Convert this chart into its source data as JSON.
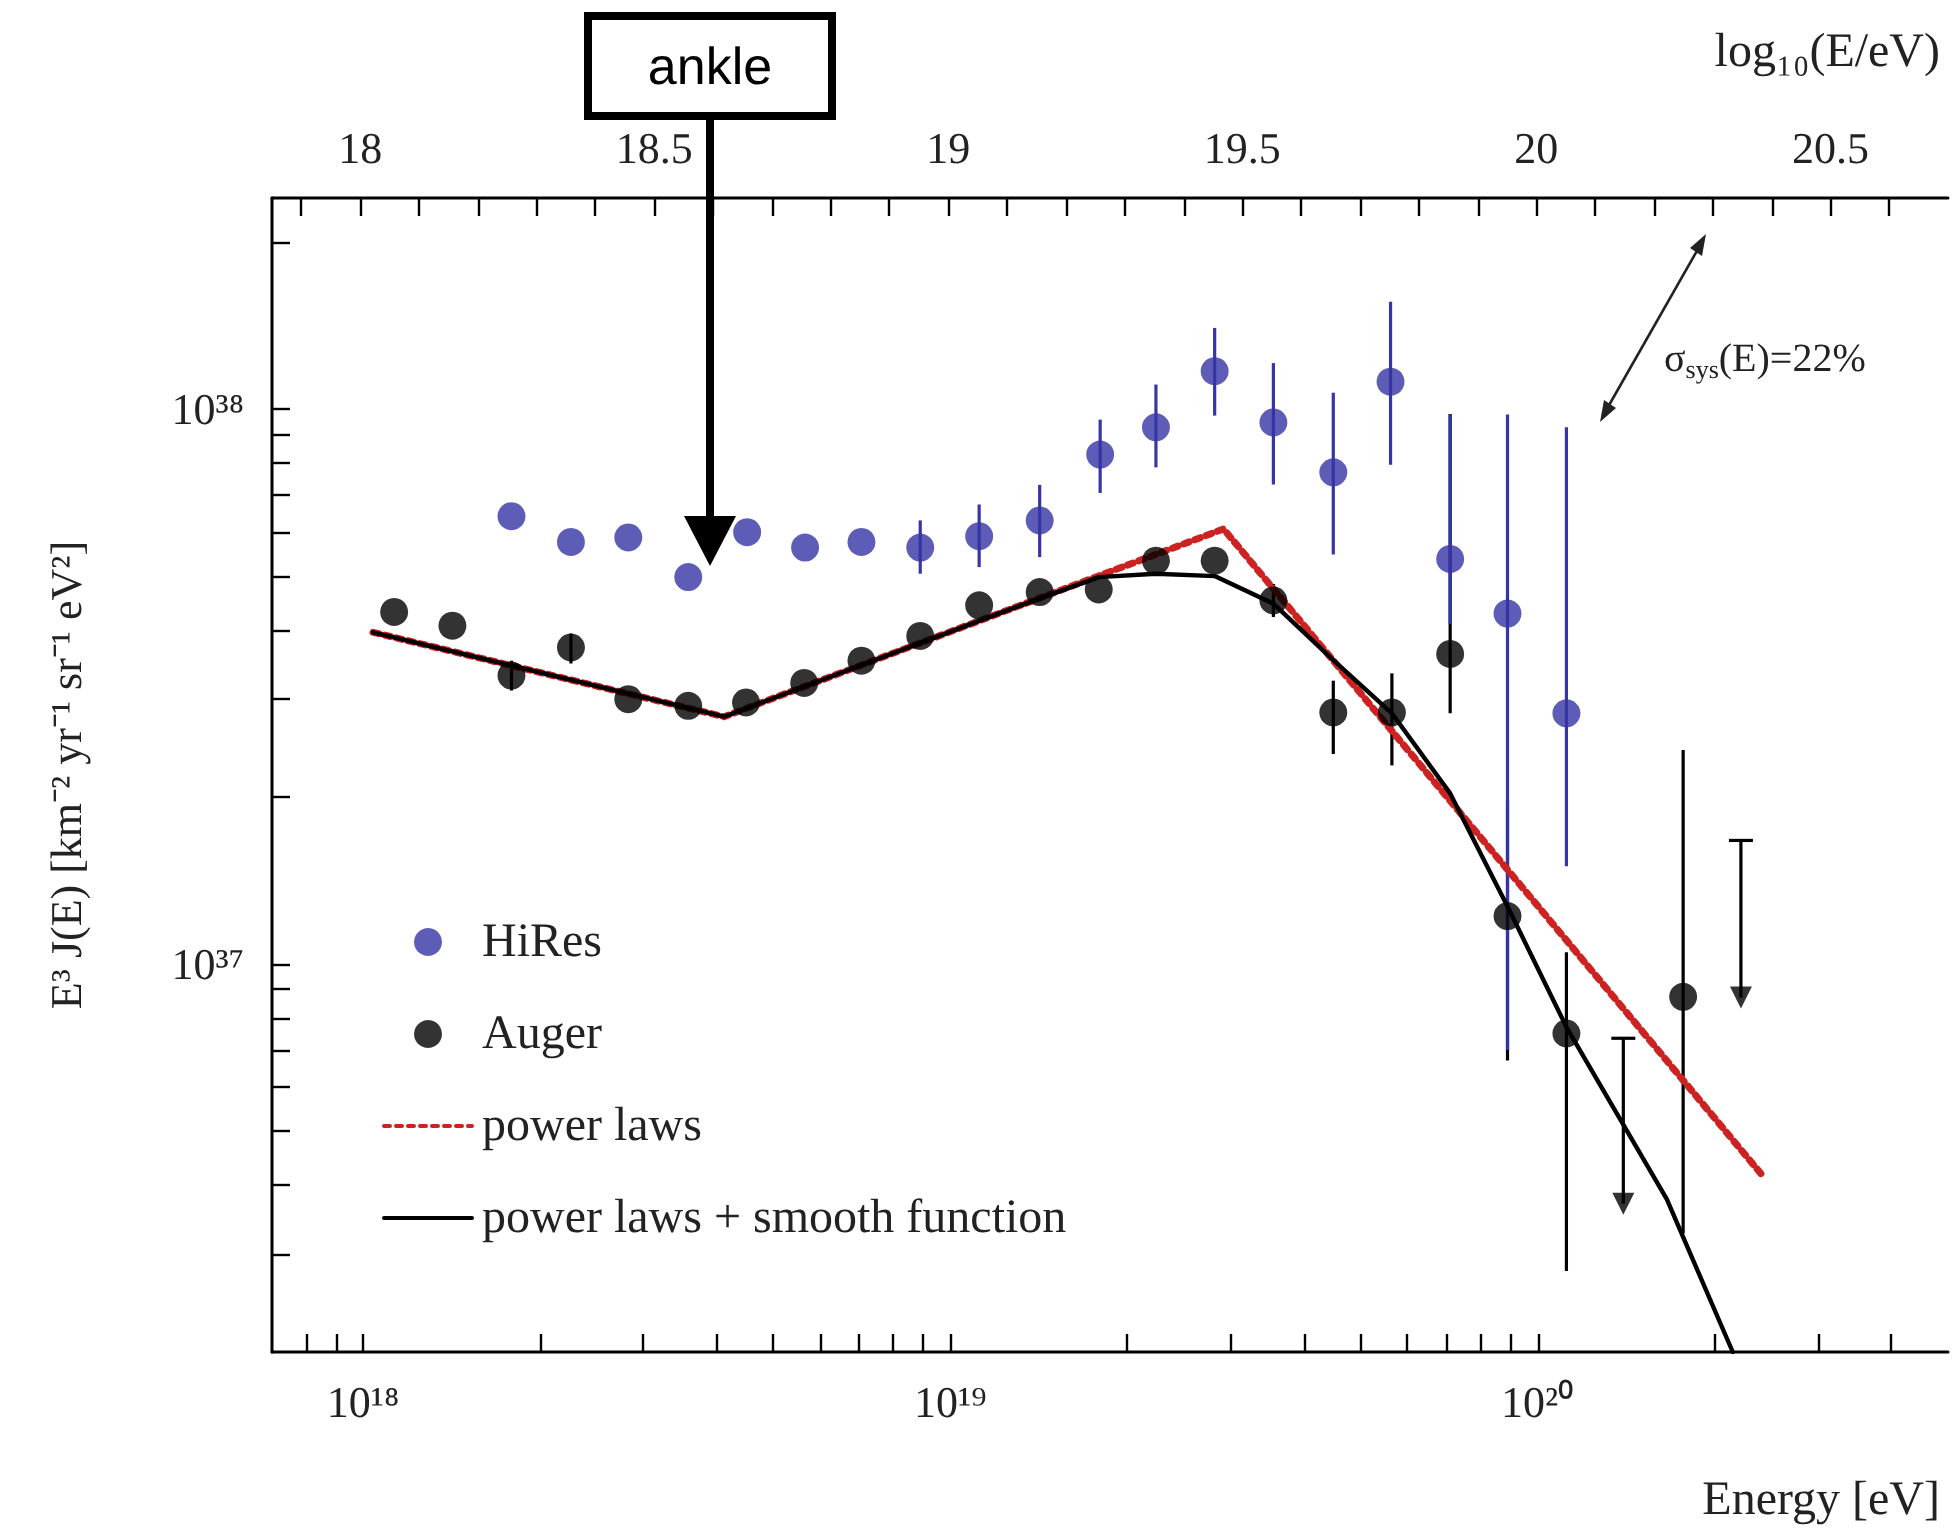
{
  "chart_data": {
    "type": "scatter",
    "xlabel": "Energy [eV]",
    "ylabel": "E³ J(E) [km⁻² yr⁻¹ sr⁻¹ eV²]",
    "x2label": "log₁₀(E/eV)",
    "xlim": [
      7e+17,
      5e+20
    ],
    "ylim": [
      2e+36,
      2.4e+38
    ],
    "x2lim": [
      17.85,
      20.7
    ],
    "log": "xy",
    "legend": "bottom left",
    "xticks": [
      {
        "value": 8e+17,
        "label": null
      },
      {
        "value": 9e+17,
        "label": null
      },
      {
        "value": 1e+18,
        "label": "10¹⁸"
      },
      {
        "value": 2e+18,
        "label": null
      },
      {
        "value": 3e+18,
        "label": null
      },
      {
        "value": 4e+18,
        "label": null
      },
      {
        "value": 5e+18,
        "label": null
      },
      {
        "value": 6e+18,
        "label": null
      },
      {
        "value": 7e+18,
        "label": null
      },
      {
        "value": 8e+18,
        "label": null
      },
      {
        "value": 9e+18,
        "label": null
      },
      {
        "value": 1e+19,
        "label": "10¹⁹"
      },
      {
        "value": 2e+19,
        "label": null
      },
      {
        "value": 3e+19,
        "label": null
      },
      {
        "value": 4e+19,
        "label": null
      },
      {
        "value": 5e+19,
        "label": null
      },
      {
        "value": 6e+19,
        "label": null
      },
      {
        "value": 7e+19,
        "label": null
      },
      {
        "value": 8e+19,
        "label": null
      },
      {
        "value": 9e+19,
        "label": null
      },
      {
        "value": 1e+20,
        "label": "10²⁰"
      },
      {
        "value": 2e+20,
        "label": null
      },
      {
        "value": 3e+20,
        "label": null
      },
      {
        "value": 4e+20,
        "label": null
      }
    ],
    "yticks": [
      {
        "value": 3e+36,
        "label": null
      },
      {
        "value": 4e+36,
        "label": null
      },
      {
        "value": 5e+36,
        "label": null
      },
      {
        "value": 6e+36,
        "label": null
      },
      {
        "value": 7e+36,
        "label": null
      },
      {
        "value": 8e+36,
        "label": null
      },
      {
        "value": 9e+36,
        "label": null
      },
      {
        "value": 1e+37,
        "label": "10³⁷"
      },
      {
        "value": 2e+37,
        "label": null
      },
      {
        "value": 3e+37,
        "label": null
      },
      {
        "value": 4e+37,
        "label": null
      },
      {
        "value": 5e+37,
        "label": null
      },
      {
        "value": 6e+37,
        "label": null
      },
      {
        "value": 7e+37,
        "label": null
      },
      {
        "value": 8e+37,
        "label": null
      },
      {
        "value": 9e+37,
        "label": null
      },
      {
        "value": 1e+38,
        "label": "10³⁸"
      },
      {
        "value": 2e+38,
        "label": null
      }
    ],
    "x2ticks": [
      {
        "value": 17.9,
        "label": null
      },
      18,
      {
        "value": 18.1,
        "label": null
      },
      {
        "value": 18.2,
        "label": null
      },
      {
        "value": 18.3,
        "label": null
      },
      {
        "value": 18.4,
        "label": null
      },
      18.5,
      {
        "value": 18.6,
        "label": null
      },
      {
        "value": 18.7,
        "label": null
      },
      {
        "value": 18.8,
        "label": null
      },
      {
        "value": 18.9,
        "label": null
      },
      19,
      {
        "value": 19.1,
        "label": null
      },
      {
        "value": 19.2,
        "label": null
      },
      {
        "value": 19.3,
        "label": null
      },
      {
        "value": 19.4,
        "label": null
      },
      19.5,
      {
        "value": 19.6,
        "label": null
      },
      {
        "value": 19.7,
        "label": null
      },
      {
        "value": 19.8,
        "label": null
      },
      {
        "value": 19.9,
        "label": null
      },
      20,
      {
        "value": 20.1,
        "label": null
      },
      {
        "value": 20.2,
        "label": null
      },
      {
        "value": 20.3,
        "label": null
      },
      {
        "value": 20.4,
        "label": null
      },
      20.5,
      {
        "value": 20.6,
        "label": null
      }
    ],
    "series": [
      {
        "name": "HiRes",
        "marker": "circle",
        "color": "#3535a5",
        "x": [
          1.79e+18,
          2.26e+18,
          2.83e+18,
          3.58e+18,
          4.51e+18,
          5.66e+18,
          7.06e+18,
          8.89e+18,
          1.12e+19,
          1.42e+19,
          1.8e+19,
          2.24e+19,
          2.82e+19,
          3.55e+19,
          4.49e+19,
          5.62e+19,
          7.1e+19,
          8.89e+19,
          1.12e+20
        ],
        "values": [
          6.41e+37,
          5.76e+37,
          5.87e+37,
          4.98e+37,
          6e+37,
          5.63e+37,
          5.76e+37,
          5.63e+37,
          5.9e+37,
          6.3e+37,
          8.28e+37,
          9.27e+37,
          1.17e+38,
          9.46e+37,
          7.69e+37,
          1.12e+38,
          5.37e+37,
          4.28e+37,
          2.83e+37
        ],
        "errors": [
          null,
          null,
          null,
          null,
          null,
          null,
          null,
          [
            5.05e+37,
            6.3e+37
          ],
          [
            5.19e+37,
            6.73e+37
          ],
          [
            5.41e+37,
            7.3e+37
          ],
          [
            7.06e+37,
            9.57e+37
          ],
          [
            7.85e+37,
            1.107e+38
          ],
          [
            9.73e+37,
            1.4e+38
          ],
          [
            7.31e+37,
            1.21e+38
          ],
          [
            5.47e+37,
            1.07e+38
          ],
          [
            7.94e+37,
            1.56e+38
          ],
          [
            4.1e+37,
            9.78e+37
          ],
          [
            7e+36,
            9.78e+37
          ],
          [
            1.5e+37,
            9.27e+37
          ]
        ]
      },
      {
        "name": "Auger",
        "marker": "circle",
        "color": "#000000",
        "x": [
          1.13e+18,
          1.42e+18,
          1.79e+18,
          2.26e+18,
          2.83e+18,
          3.58e+18,
          4.49e+18,
          5.64e+18,
          7.06e+18,
          8.89e+18,
          1.12e+19,
          1.42e+19,
          1.79e+19,
          2.24e+19,
          2.82e+19,
          3.55e+19,
          4.49e+19,
          5.65e+19,
          7.1e+19,
          8.89e+19,
          1.12e+20,
          1.77e+20
        ],
        "values": [
          4.31e+37,
          4.07e+37,
          3.31e+37,
          3.72e+37,
          3e+37,
          2.92e+37,
          2.96e+37,
          3.21e+37,
          3.52e+37,
          3.9e+37,
          4.43e+37,
          4.68e+37,
          4.73e+37,
          5.33e+37,
          5.33e+37,
          4.52e+37,
          2.84e+37,
          2.84e+37,
          3.62e+37,
          1.22e+37,
          7.5e+36,
          8.73e+36
        ],
        "errors": [
          null,
          null,
          [
            3.11e+37,
            3.52e+37
          ],
          [
            3.48e+37,
            3.94e+37
          ],
          null,
          null,
          null,
          null,
          null,
          null,
          null,
          null,
          null,
          null,
          null,
          [
            4.22e+37,
            4.84e+37
          ],
          [
            2.39e+37,
            3.24e+37
          ],
          [
            2.28e+37,
            3.34e+37
          ],
          [
            2.83e+37,
            9.8e+37
          ],
          [
            6.7e+36,
            1.97e+37
          ],
          [
            2.8e+36,
            1.05e+37
          ],
          [
            3.27e+36,
            2.43e+37
          ]
        ]
      },
      {
        "marker": "triangle",
        "color": "#000000",
        "x": [
          1.4e+20,
          2.22e+20
        ],
        "values": [
          3.7e+36,
          8.7e+36
        ],
        "errors": [
          [
            3.7e+36,
            7.35e+36
          ],
          [
            8.7e+36,
            1.67e+37
          ]
        ]
      },
      {
        "name": "power laws",
        "type": "line",
        "line_style": "dotted",
        "color": "#cc2222",
        "x": [
          1.04e+18,
          4.12e+18,
          2.92e+19,
          2.42e+20
        ],
        "values": [
          3.96e+37,
          2.79e+37,
          6.08e+37,
          4.15e+36
        ]
      },
      {
        "name": "power laws + smooth function",
        "type": "line",
        "line_style": "solid",
        "color": "#000000",
        "x": [
          1.04e+18,
          4.12e+18,
          1.26e+19,
          1.79e+19,
          2.24e+19,
          2.82e+19,
          3.55e+19,
          4.49e+19,
          5.65e+19,
          7.1e+19,
          8.89e+19,
          1.12e+20,
          1.66e+20,
          2.15e+20
        ],
        "values": [
          3.96e+37,
          2.79e+37,
          4.35e+37,
          4.98e+37,
          5.05e+37,
          5e+37,
          4.46e+37,
          3.53e+37,
          2.83e+37,
          2.03e+37,
          1.27e+37,
          7.7e+36,
          3.77e+36,
          2e+36
        ]
      }
    ],
    "annotations": [
      "ankle",
      "σ$_{sys}$(E)=22%"
    ]
  }
}
